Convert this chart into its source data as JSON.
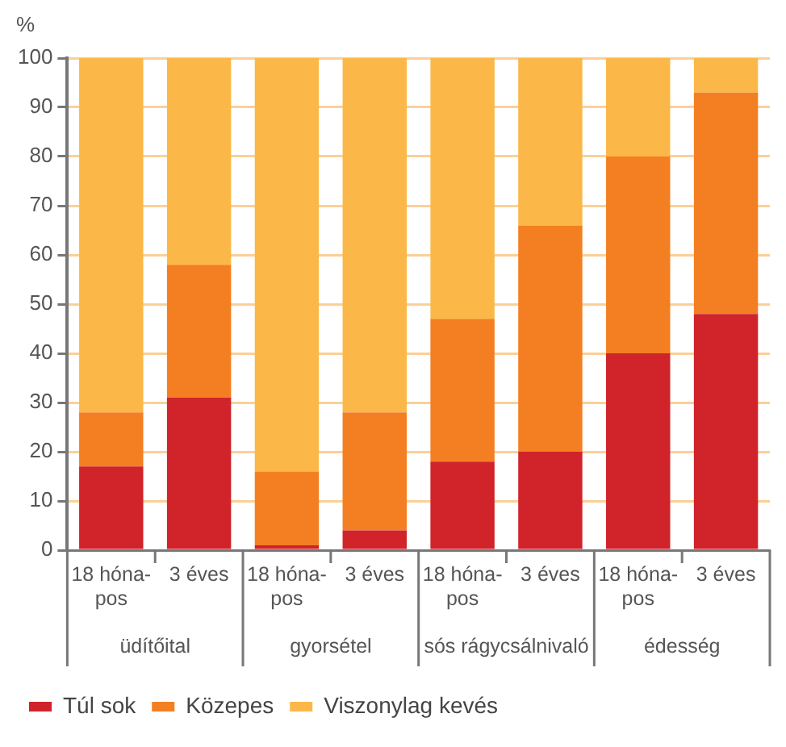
{
  "chart_data": {
    "type": "bar",
    "ylabel": "%",
    "stacked": true,
    "categories": [
      "18 hóna-\npos",
      "3 éves",
      "18 hóna-\npos",
      "3 éves",
      "18 hóna-\npos",
      "3 éves",
      "18 hóna-\npos",
      "3 éves"
    ],
    "annotations": [
      "üdítőital",
      "gyorsétel",
      "sós rágycsálnivaló",
      "édesség"
    ],
    "series": [
      {
        "name": "Túl sok",
        "color": "#d0232a",
        "values": [
          17,
          31,
          1,
          4,
          18,
          20,
          40,
          48
        ]
      },
      {
        "name": "Közepes",
        "color": "#f37f22",
        "values": [
          11,
          27,
          15,
          24,
          29,
          46,
          40,
          45
        ]
      },
      {
        "name": "Viszonylag kevés",
        "color": "#fbb848",
        "values": [
          72,
          42,
          84,
          72,
          53,
          34,
          20,
          7
        ]
      }
    ],
    "ylim": [
      0,
      100
    ],
    "yticks": [
      0,
      10,
      20,
      30,
      40,
      50,
      60,
      70,
      80,
      90,
      100
    ],
    "grid": "y",
    "legend": "bottom"
  }
}
